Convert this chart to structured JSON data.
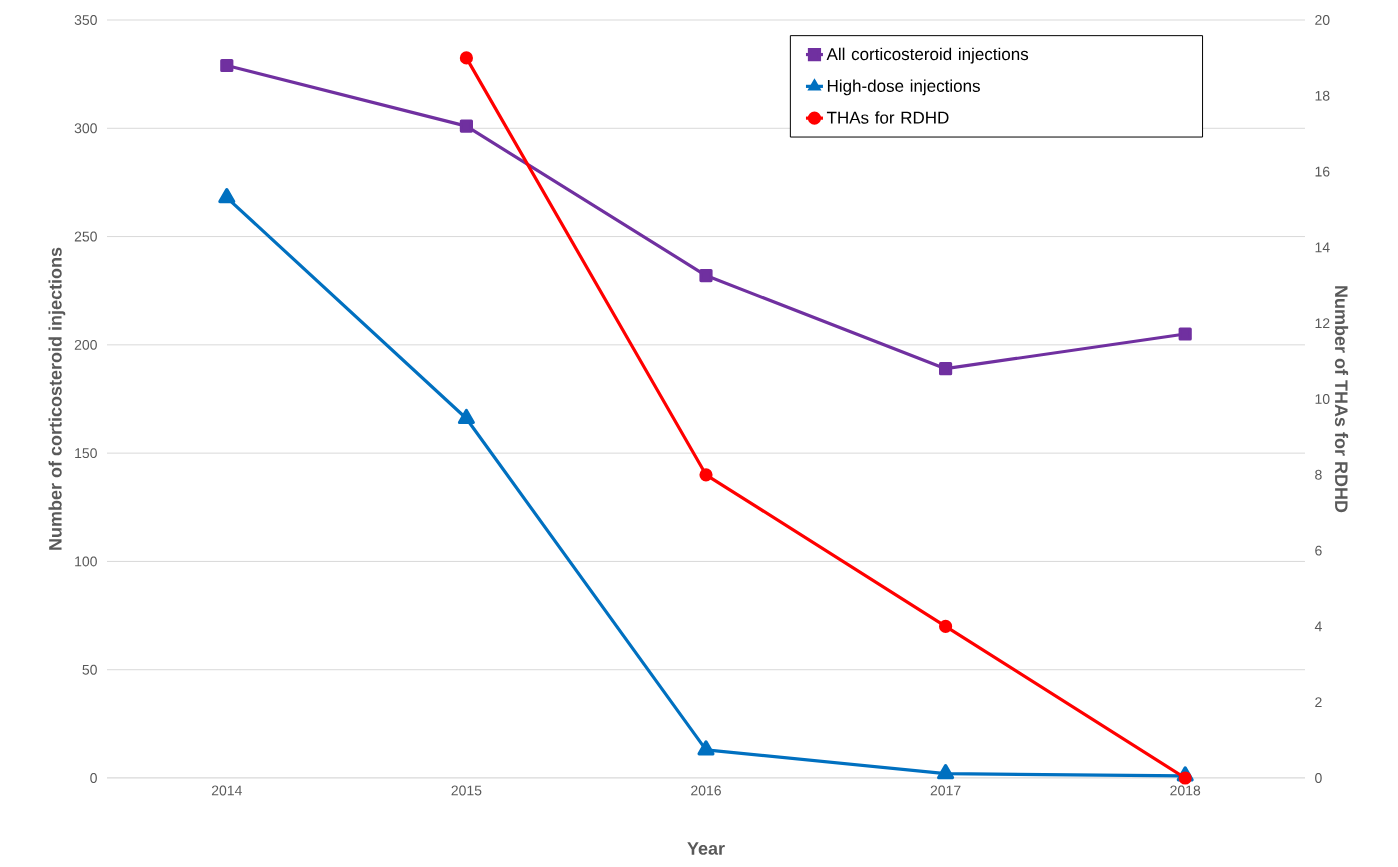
{
  "chart_data": {
    "type": "line",
    "xlabel": "Year",
    "ylabel": "Number of corticosteroid injections",
    "y2label": "Number of THAs for RDHD",
    "categories": [
      "2014",
      "2015",
      "2016",
      "2017",
      "2018"
    ],
    "ylim": [
      0,
      350
    ],
    "yticks": [
      0,
      50,
      100,
      150,
      200,
      250,
      300,
      350
    ],
    "y2lim": [
      0,
      20
    ],
    "y2ticks": [
      0,
      2,
      4,
      6,
      8,
      10,
      12,
      14,
      16,
      18,
      20
    ],
    "grid": "y",
    "legend": "top right",
    "line_style": "solid",
    "series": [
      {
        "name": "All corticosteroid injections",
        "color": "#7030a0",
        "marker": "square",
        "values": [
          329,
          301,
          232,
          189,
          205
        ]
      },
      {
        "name": "High-dose injections",
        "color": "#0070c0",
        "marker": "triangle",
        "values": [
          268,
          166,
          13,
          2,
          1
        ]
      },
      {
        "name": "THAs for RDHD",
        "color": "#ff0000",
        "marker": "circle",
        "axis": "y2",
        "values": [
          null,
          19,
          8,
          4,
          0
        ]
      }
    ]
  }
}
